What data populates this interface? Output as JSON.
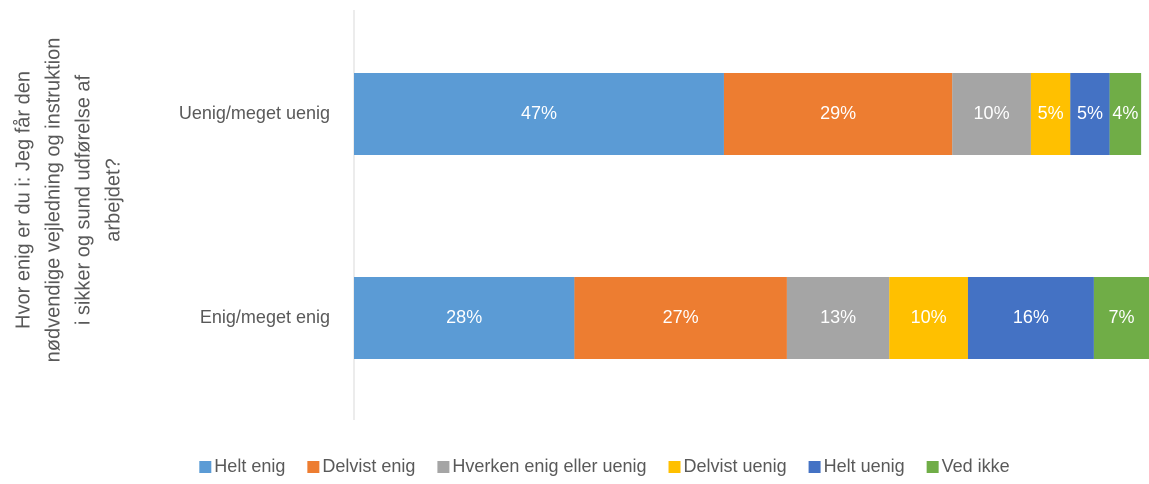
{
  "chart_data": {
    "type": "stacked_bar_horizontal",
    "y_label": [
      "Hvor enig er du i: Jeg får den",
      "nødvendige vejledning og instruktion",
      "i sikker og sund udførelse af",
      "arbejdet?"
    ],
    "categories": [
      "Uenig/meget uenig",
      "Enig/meget enig"
    ],
    "series": [
      {
        "name": "Helt enig",
        "color": "#5b9bd5",
        "values": [
          47,
          28
        ],
        "value_labels": [
          "47%",
          "28%"
        ]
      },
      {
        "name": "Delvist enig",
        "color": "#ed7d31",
        "values": [
          29,
          27
        ],
        "value_labels": [
          "29%",
          "27%"
        ]
      },
      {
        "name": "Hverken enig eller uenig",
        "color": "#a5a5a5",
        "values": [
          10,
          13
        ],
        "value_labels": [
          "10%",
          "13%"
        ]
      },
      {
        "name": "Delvist uenig",
        "color": "#ffc000",
        "values": [
          5,
          10
        ],
        "value_labels": [
          "5%",
          "10%"
        ]
      },
      {
        "name": "Helt uenig",
        "color": "#4472c4",
        "values": [
          5,
          16
        ],
        "value_labels": [
          "5%",
          "16%"
        ]
      },
      {
        "name": "Ved ikke",
        "color": "#70ad47",
        "values": [
          4,
          7
        ],
        "value_labels": [
          "4%",
          "7%"
        ]
      }
    ],
    "legend": "bottom"
  }
}
